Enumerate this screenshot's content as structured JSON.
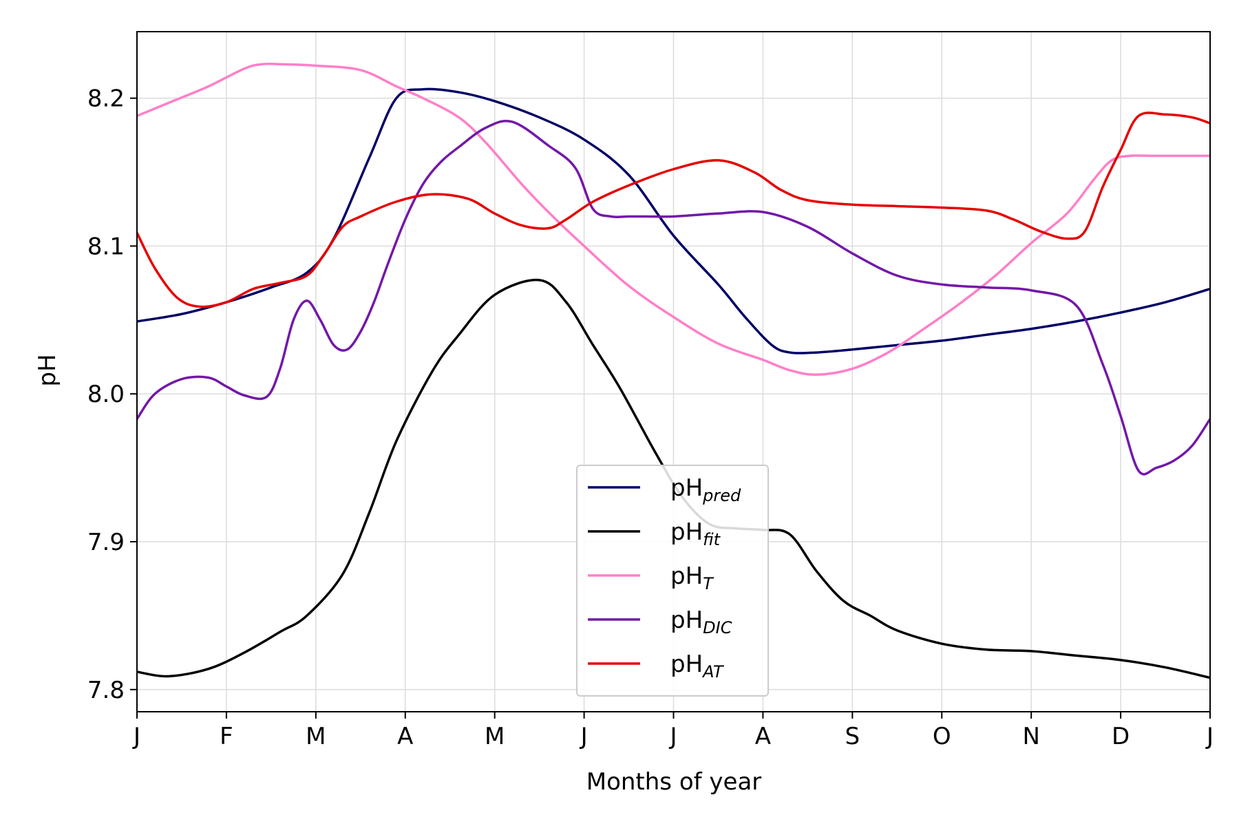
{
  "chart_data": {
    "type": "line",
    "title": "",
    "xlabel": "Months of year",
    "ylabel": "pH",
    "x_tick_labels": [
      "J",
      "F",
      "M",
      "A",
      "M",
      "J",
      "J",
      "A",
      "S",
      "O",
      "N",
      "D",
      "J"
    ],
    "x_range": [
      0,
      12
    ],
    "ylim": [
      7.785,
      8.245
    ],
    "y_ticks": [
      7.8,
      7.9,
      8.0,
      8.1,
      8.2
    ],
    "y_tick_labels": [
      "7.8",
      "7.9",
      "8.0",
      "8.1",
      "8.2"
    ],
    "grid": true,
    "legend_position": "bottom-center",
    "series": [
      {
        "name": "pH",
        "subscript": "pred",
        "color": "#000066",
        "x": [
          0,
          0.5,
          1.0,
          1.5,
          1.9,
          2.2,
          2.6,
          2.9,
          3.2,
          3.6,
          4.0,
          4.5,
          5.0,
          5.5,
          6.0,
          6.5,
          6.8,
          7.1,
          7.3,
          7.6,
          8.0,
          8.5,
          9.0,
          9.5,
          10.0,
          10.5,
          11.0,
          11.5,
          12.0
        ],
        "y": [
          8.049,
          8.054,
          8.062,
          8.072,
          8.082,
          8.105,
          8.16,
          8.2,
          8.206,
          8.204,
          8.198,
          8.187,
          8.172,
          8.148,
          8.107,
          8.074,
          8.052,
          8.033,
          8.028,
          8.028,
          8.03,
          8.033,
          8.036,
          8.04,
          8.044,
          8.049,
          8.055,
          8.062,
          8.071
        ]
      },
      {
        "name": "pH",
        "subscript": "fit",
        "color": "#000000",
        "x": [
          0,
          0.35,
          0.8,
          1.2,
          1.6,
          1.9,
          2.3,
          2.6,
          2.9,
          3.3,
          3.6,
          4.0,
          4.5,
          4.8,
          5.1,
          5.4,
          5.8,
          6.1,
          6.4,
          6.7,
          7.0,
          7.3,
          7.6,
          7.9,
          8.2,
          8.5,
          9.0,
          9.5,
          10.0,
          10.5,
          11.0,
          11.5,
          12.0
        ],
        "y": [
          7.812,
          7.809,
          7.814,
          7.825,
          7.839,
          7.85,
          7.878,
          7.92,
          7.968,
          8.015,
          8.04,
          8.067,
          8.077,
          8.062,
          8.033,
          8.004,
          7.96,
          7.93,
          7.912,
          7.909,
          7.908,
          7.905,
          7.88,
          7.86,
          7.85,
          7.84,
          7.831,
          7.827,
          7.826,
          7.823,
          7.82,
          7.815,
          7.808
        ]
      },
      {
        "name": "pH",
        "subscript": "T",
        "color": "#ff7fc8",
        "x": [
          0,
          0.4,
          0.8,
          1.2,
          1.4,
          1.6,
          2.0,
          2.5,
          2.9,
          3.2,
          3.6,
          3.9,
          4.3,
          4.6,
          5.0,
          5.5,
          6.0,
          6.5,
          7.0,
          7.3,
          7.6,
          8.0,
          8.4,
          8.8,
          9.2,
          9.6,
          10.0,
          10.4,
          10.7,
          10.9,
          11.1,
          11.4,
          12.0
        ],
        "y": [
          8.188,
          8.198,
          8.208,
          8.22,
          8.223,
          8.223,
          8.222,
          8.219,
          8.208,
          8.2,
          8.187,
          8.17,
          8.142,
          8.123,
          8.1,
          8.073,
          8.052,
          8.034,
          8.023,
          8.016,
          8.013,
          8.017,
          8.028,
          8.044,
          8.061,
          8.08,
          8.102,
          8.122,
          8.145,
          8.158,
          8.161,
          8.161,
          8.161
        ]
      },
      {
        "name": "pH",
        "subscript": "DIC",
        "color": "#7318a8",
        "x": [
          0,
          0.2,
          0.5,
          0.8,
          1.0,
          1.2,
          1.45,
          1.6,
          1.75,
          1.9,
          2.05,
          2.2,
          2.35,
          2.5,
          2.65,
          2.8,
          3.0,
          3.2,
          3.4,
          3.6,
          3.9,
          4.2,
          4.6,
          4.9,
          5.1,
          5.3,
          5.5,
          5.7,
          6.0,
          6.5,
          7.0,
          7.5,
          8.0,
          8.5,
          9.0,
          9.5,
          10.0,
          10.5,
          10.8,
          11.0,
          11.2,
          11.4,
          11.6,
          11.8,
          12.0
        ],
        "y": [
          7.983,
          8.0,
          8.01,
          8.011,
          8.005,
          7.999,
          7.998,
          8.017,
          8.05,
          8.063,
          8.05,
          8.033,
          8.03,
          8.042,
          8.062,
          8.087,
          8.118,
          8.142,
          8.157,
          8.167,
          8.18,
          8.184,
          8.168,
          8.153,
          8.125,
          8.12,
          8.12,
          8.12,
          8.12,
          8.122,
          8.123,
          8.113,
          8.095,
          8.08,
          8.074,
          8.072,
          8.07,
          8.06,
          8.02,
          7.985,
          7.948,
          7.95,
          7.955,
          7.965,
          7.983
        ]
      },
      {
        "name": "pH",
        "subscript": "AT",
        "color": "#e60000",
        "x": [
          0,
          0.2,
          0.45,
          0.7,
          1.0,
          1.3,
          1.6,
          1.9,
          2.1,
          2.3,
          2.5,
          2.9,
          3.3,
          3.7,
          4.0,
          4.3,
          4.6,
          4.8,
          5.1,
          5.5,
          6.0,
          6.5,
          6.9,
          7.2,
          7.5,
          8.0,
          8.5,
          9.0,
          9.5,
          9.8,
          10.1,
          10.4,
          10.6,
          10.8,
          11.0,
          11.2,
          11.5,
          11.8,
          12.0
        ],
        "y": [
          8.109,
          8.085,
          8.065,
          8.059,
          8.062,
          8.071,
          8.075,
          8.08,
          8.095,
          8.113,
          8.12,
          8.13,
          8.135,
          8.132,
          8.122,
          8.114,
          8.112,
          8.118,
          8.13,
          8.141,
          8.152,
          8.158,
          8.15,
          8.138,
          8.131,
          8.128,
          8.127,
          8.126,
          8.124,
          8.118,
          8.11,
          8.105,
          8.11,
          8.14,
          8.165,
          8.188,
          8.189,
          8.187,
          8.183
        ]
      }
    ]
  }
}
